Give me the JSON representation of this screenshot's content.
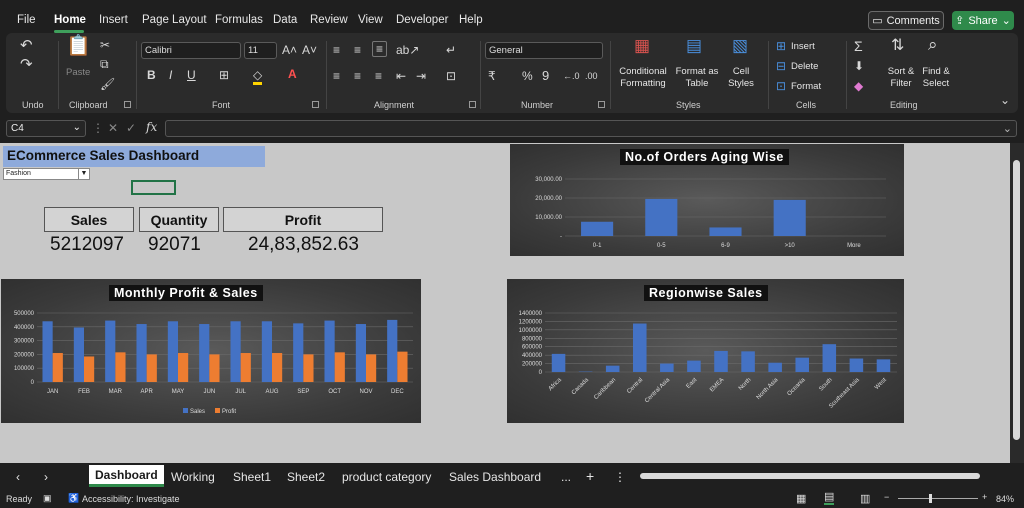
{
  "menu": {
    "tabs": [
      "File",
      "Home",
      "Insert",
      "Page Layout",
      "Formulas",
      "Data",
      "Review",
      "View",
      "Developer",
      "Help"
    ],
    "comments": "Comments",
    "share": "Share"
  },
  "ribbon": {
    "undo_label": "Undo",
    "clipboard_label": "Clipboard",
    "paste_label": "Paste",
    "font_name": "Calibri",
    "font_size": "11",
    "font_label": "Font",
    "alignment_label": "Alignment",
    "number_format": "General",
    "number_label": "Number",
    "styles": {
      "conditional": "Conditional",
      "conditional2": "Formatting",
      "format_as": "Format as",
      "table": "Table",
      "cell": "Cell",
      "cell_styles": "Styles",
      "label": "Styles"
    },
    "cells": {
      "insert": "Insert",
      "delete": "Delete",
      "format": "Format",
      "label": "Cells"
    },
    "editing": {
      "sort": "Sort &",
      "filter": "Filter",
      "find": "Find &",
      "select": "Select",
      "label": "Editing"
    }
  },
  "formula_bar": {
    "name_box": "C4",
    "fx": "fx"
  },
  "dashboard": {
    "title": "ECommerce Sales Dashboard",
    "filter_value": "Fashion",
    "kpis": [
      {
        "label": "Sales",
        "value": "5212097"
      },
      {
        "label": "Quantity",
        "value": "92071"
      },
      {
        "label": "Profit",
        "value": "24,83,852.63"
      }
    ]
  },
  "chart_data": [
    {
      "type": "bar",
      "title": "No.of Orders Aging Wise",
      "categories": [
        "0-1",
        "0-5",
        "6-9",
        ">10",
        "More"
      ],
      "values": [
        7500,
        19500,
        4500,
        19000,
        0
      ],
      "ytick_labels": [
        "30,000.00",
        "20,000.00",
        "10,000.00",
        "-"
      ],
      "ylim": [
        0,
        30000
      ],
      "color": "#4472c4"
    },
    {
      "type": "bar",
      "title": "Monthly Profit & Sales",
      "categories": [
        "JAN",
        "FEB",
        "MAR",
        "APR",
        "MAY",
        "JUN",
        "JUL",
        "AUG",
        "SEP",
        "OCT",
        "NOV",
        "DEC"
      ],
      "series": [
        {
          "name": "Sales",
          "color": "#4472c4",
          "values": [
            440000,
            395000,
            445000,
            420000,
            440000,
            420000,
            440000,
            440000,
            425000,
            445000,
            420000,
            450000
          ]
        },
        {
          "name": "Profit",
          "color": "#ed7d31",
          "values": [
            210000,
            185000,
            215000,
            200000,
            210000,
            200000,
            210000,
            210000,
            200000,
            215000,
            200000,
            220000
          ]
        }
      ],
      "ytick_labels": [
        "500000",
        "400000",
        "300000",
        "200000",
        "100000",
        "0"
      ],
      "ylim": [
        0,
        500000
      ]
    },
    {
      "type": "bar",
      "title": "Regionwise Sales",
      "categories": [
        "Africa",
        "Canada",
        "Caribbean",
        "Central",
        "Central Asia",
        "East",
        "EMEA",
        "North",
        "North Asia",
        "Oceania",
        "South",
        "Southeast Asia",
        "West"
      ],
      "values": [
        430000,
        10000,
        150000,
        1150000,
        200000,
        270000,
        500000,
        490000,
        220000,
        340000,
        660000,
        320000,
        300000
      ],
      "ytick_labels": [
        "1400000",
        "1200000",
        "1000000",
        "800000",
        "600000",
        "400000",
        "200000",
        "0"
      ],
      "ylim": [
        0,
        1400000
      ],
      "color": "#4472c4"
    }
  ],
  "sheets": {
    "tabs": [
      "Dashboard",
      "Working",
      "Sheet1",
      "Sheet2",
      "product category",
      "Sales Dashboard"
    ],
    "more": "...",
    "add": "+"
  },
  "status": {
    "ready": "Ready",
    "accessibility": "Accessibility: Investigate",
    "zoom": "84%"
  }
}
